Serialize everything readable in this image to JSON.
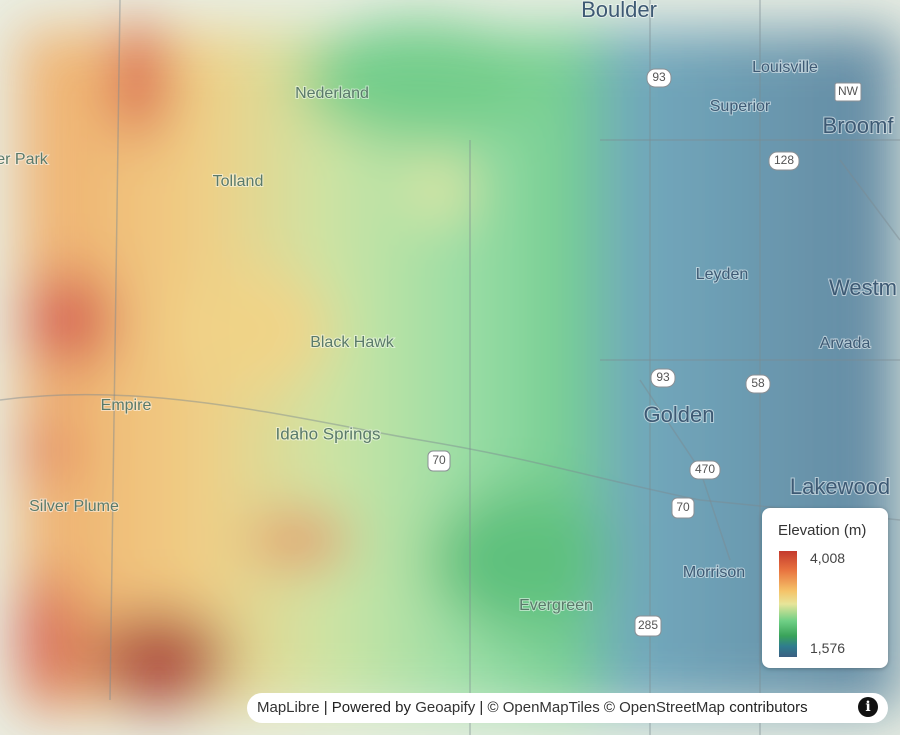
{
  "places": [
    "Boulder",
    "Louisville",
    "Nederland",
    "Superior",
    "Broomf",
    "er Park",
    "Tolland",
    "Leyden",
    "Westm",
    "Black Hawk",
    "Arvada",
    "Empire",
    "Golden",
    "Idaho Springs",
    "Lakewood",
    "Silver Plume",
    "Morrison",
    "Evergreen"
  ],
  "shields": [
    "93",
    "NW",
    "128",
    "93",
    "58",
    "470",
    "70",
    "70",
    "285"
  ],
  "legend": {
    "title": "Elevation (m)",
    "max_label": "4,008",
    "min_label": "1,576"
  },
  "attribution": {
    "maplibre": "MapLibre",
    "sep1": "|",
    "powered": "Powered by",
    "geoapify": "Geoapify",
    "sep2": "|",
    "copy1": "©",
    "openmaptiles": "OpenMapTiles",
    "copy2": "©",
    "osm": "OpenStreetMap",
    "contributors": "contributors"
  }
}
